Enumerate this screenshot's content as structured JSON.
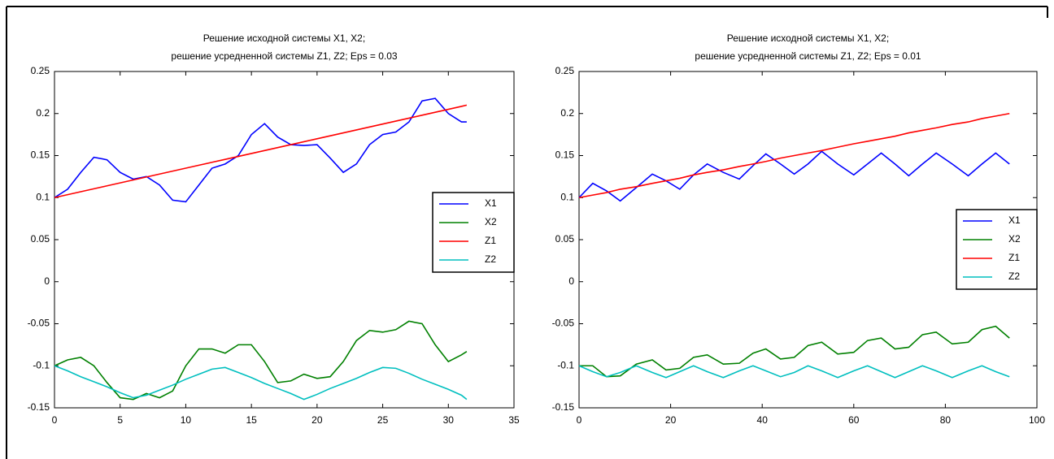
{
  "chart_data": [
    {
      "type": "line",
      "title": [
        "Решение исходной системы X1, X2;",
        "решение усредненной системы Z1, Z2; Eps = 0.03"
      ],
      "x": [
        0,
        1,
        2,
        3,
        4,
        5,
        6,
        7,
        8,
        9,
        10,
        11,
        12,
        13,
        14,
        15,
        16,
        17,
        18,
        19,
        20,
        21,
        22,
        23,
        24,
        25,
        26,
        27,
        28,
        29,
        30,
        31,
        31.4
      ],
      "series": [
        {
          "name": "X1",
          "color": "#0000ff",
          "values": [
            0.1,
            0.11,
            0.13,
            0.148,
            0.145,
            0.13,
            0.122,
            0.125,
            0.115,
            0.097,
            0.095,
            0.115,
            0.135,
            0.14,
            0.15,
            0.175,
            0.188,
            0.172,
            0.163,
            0.162,
            0.163,
            0.147,
            0.13,
            0.14,
            0.163,
            0.175,
            0.178,
            0.19,
            0.215,
            0.218,
            0.2,
            0.19,
            0.19
          ]
        },
        {
          "name": "X2",
          "color": "#008000",
          "values": [
            -0.1,
            -0.093,
            -0.09,
            -0.1,
            -0.12,
            -0.138,
            -0.14,
            -0.133,
            -0.138,
            -0.13,
            -0.1,
            -0.08,
            -0.08,
            -0.085,
            -0.075,
            -0.075,
            -0.095,
            -0.12,
            -0.118,
            -0.11,
            -0.115,
            -0.113,
            -0.095,
            -0.07,
            -0.058,
            -0.06,
            -0.057,
            -0.047,
            -0.05,
            -0.075,
            -0.095,
            -0.087,
            -0.083
          ]
        },
        {
          "name": "Z1",
          "color": "#ff0000",
          "values": [
            0.1,
            0.1035,
            0.107,
            0.1105,
            0.114,
            0.1175,
            0.121,
            0.1245,
            0.128,
            0.1315,
            0.135,
            0.1385,
            0.142,
            0.1455,
            0.149,
            0.1525,
            0.156,
            0.1595,
            0.163,
            0.1665,
            0.17,
            0.1735,
            0.177,
            0.1805,
            0.184,
            0.1875,
            0.191,
            0.1945,
            0.198,
            0.2015,
            0.205,
            0.2085,
            0.21
          ]
        },
        {
          "name": "Z2",
          "color": "#00bfbf",
          "values": [
            -0.1,
            -0.106,
            -0.113,
            -0.119,
            -0.125,
            -0.132,
            -0.138,
            -0.135,
            -0.129,
            -0.123,
            -0.116,
            -0.11,
            -0.104,
            -0.102,
            -0.108,
            -0.114,
            -0.121,
            -0.127,
            -0.133,
            -0.14,
            -0.134,
            -0.127,
            -0.121,
            -0.115,
            -0.108,
            -0.102,
            -0.103,
            -0.109,
            -0.116,
            -0.122,
            -0.128,
            -0.135,
            -0.14
          ]
        }
      ],
      "xlim": [
        0,
        35
      ],
      "xticks": [
        0,
        5,
        10,
        15,
        20,
        25,
        30,
        35
      ],
      "ylim": [
        -0.15,
        0.25
      ],
      "yticks": [
        0.25,
        0.2,
        0.15,
        0.1,
        0.05,
        0,
        -0.05,
        -0.1,
        -0.15
      ],
      "legend": "east"
    },
    {
      "type": "line",
      "title": [
        "Решение исходной системы X1, X2;",
        "решение усредненной системы Z1, Z2; Eps = 0.01"
      ],
      "x": [
        0,
        3,
        6,
        9,
        12.5,
        16,
        19,
        22,
        25,
        28,
        31.5,
        35,
        38,
        40.8,
        44,
        47,
        50,
        53,
        56.5,
        60,
        63,
        66,
        69,
        72,
        75,
        78,
        81.5,
        85,
        88,
        91,
        94
      ],
      "series": [
        {
          "name": "X1",
          "color": "#0000ff",
          "values": [
            0.1,
            0.117,
            0.108,
            0.096,
            0.112,
            0.128,
            0.12,
            0.11,
            0.127,
            0.14,
            0.13,
            0.122,
            0.138,
            0.152,
            0.14,
            0.128,
            0.14,
            0.155,
            0.14,
            0.127,
            0.14,
            0.153,
            0.14,
            0.126,
            0.14,
            0.153,
            0.14,
            0.126,
            0.14,
            0.153,
            0.14
          ]
        },
        {
          "name": "X2",
          "color": "#008000",
          "values": [
            -0.1,
            -0.1,
            -0.113,
            -0.112,
            -0.098,
            -0.093,
            -0.105,
            -0.103,
            -0.09,
            -0.087,
            -0.098,
            -0.097,
            -0.085,
            -0.08,
            -0.092,
            -0.09,
            -0.076,
            -0.072,
            -0.086,
            -0.084,
            -0.07,
            -0.067,
            -0.08,
            -0.078,
            -0.063,
            -0.06,
            -0.074,
            -0.072,
            -0.057,
            -0.053,
            -0.067
          ]
        },
        {
          "name": "Z1",
          "color": "#ff0000",
          "values": [
            0.1,
            0.103,
            0.106,
            0.11,
            0.113,
            0.117,
            0.12,
            0.123,
            0.127,
            0.13,
            0.133,
            0.137,
            0.14,
            0.143,
            0.147,
            0.15,
            0.153,
            0.156,
            0.16,
            0.164,
            0.167,
            0.17,
            0.173,
            0.177,
            0.18,
            0.183,
            0.187,
            0.19,
            0.194,
            0.197,
            0.2
          ]
        },
        {
          "name": "Z2",
          "color": "#00bfbf",
          "values": [
            -0.1,
            -0.107,
            -0.113,
            -0.108,
            -0.1,
            -0.108,
            -0.114,
            -0.107,
            -0.1,
            -0.107,
            -0.114,
            -0.106,
            -0.1,
            -0.106,
            -0.113,
            -0.108,
            -0.1,
            -0.106,
            -0.114,
            -0.106,
            -0.1,
            -0.107,
            -0.114,
            -0.107,
            -0.1,
            -0.106,
            -0.114,
            -0.106,
            -0.1,
            -0.107,
            -0.113
          ]
        }
      ],
      "xlim": [
        0,
        100
      ],
      "xticks": [
        0,
        20,
        40,
        60,
        80,
        100
      ],
      "ylim": [
        -0.15,
        0.25
      ],
      "yticks": [
        0.25,
        0.2,
        0.15,
        0.1,
        0.05,
        0,
        -0.05,
        -0.1,
        -0.15
      ],
      "legend": "east"
    }
  ]
}
